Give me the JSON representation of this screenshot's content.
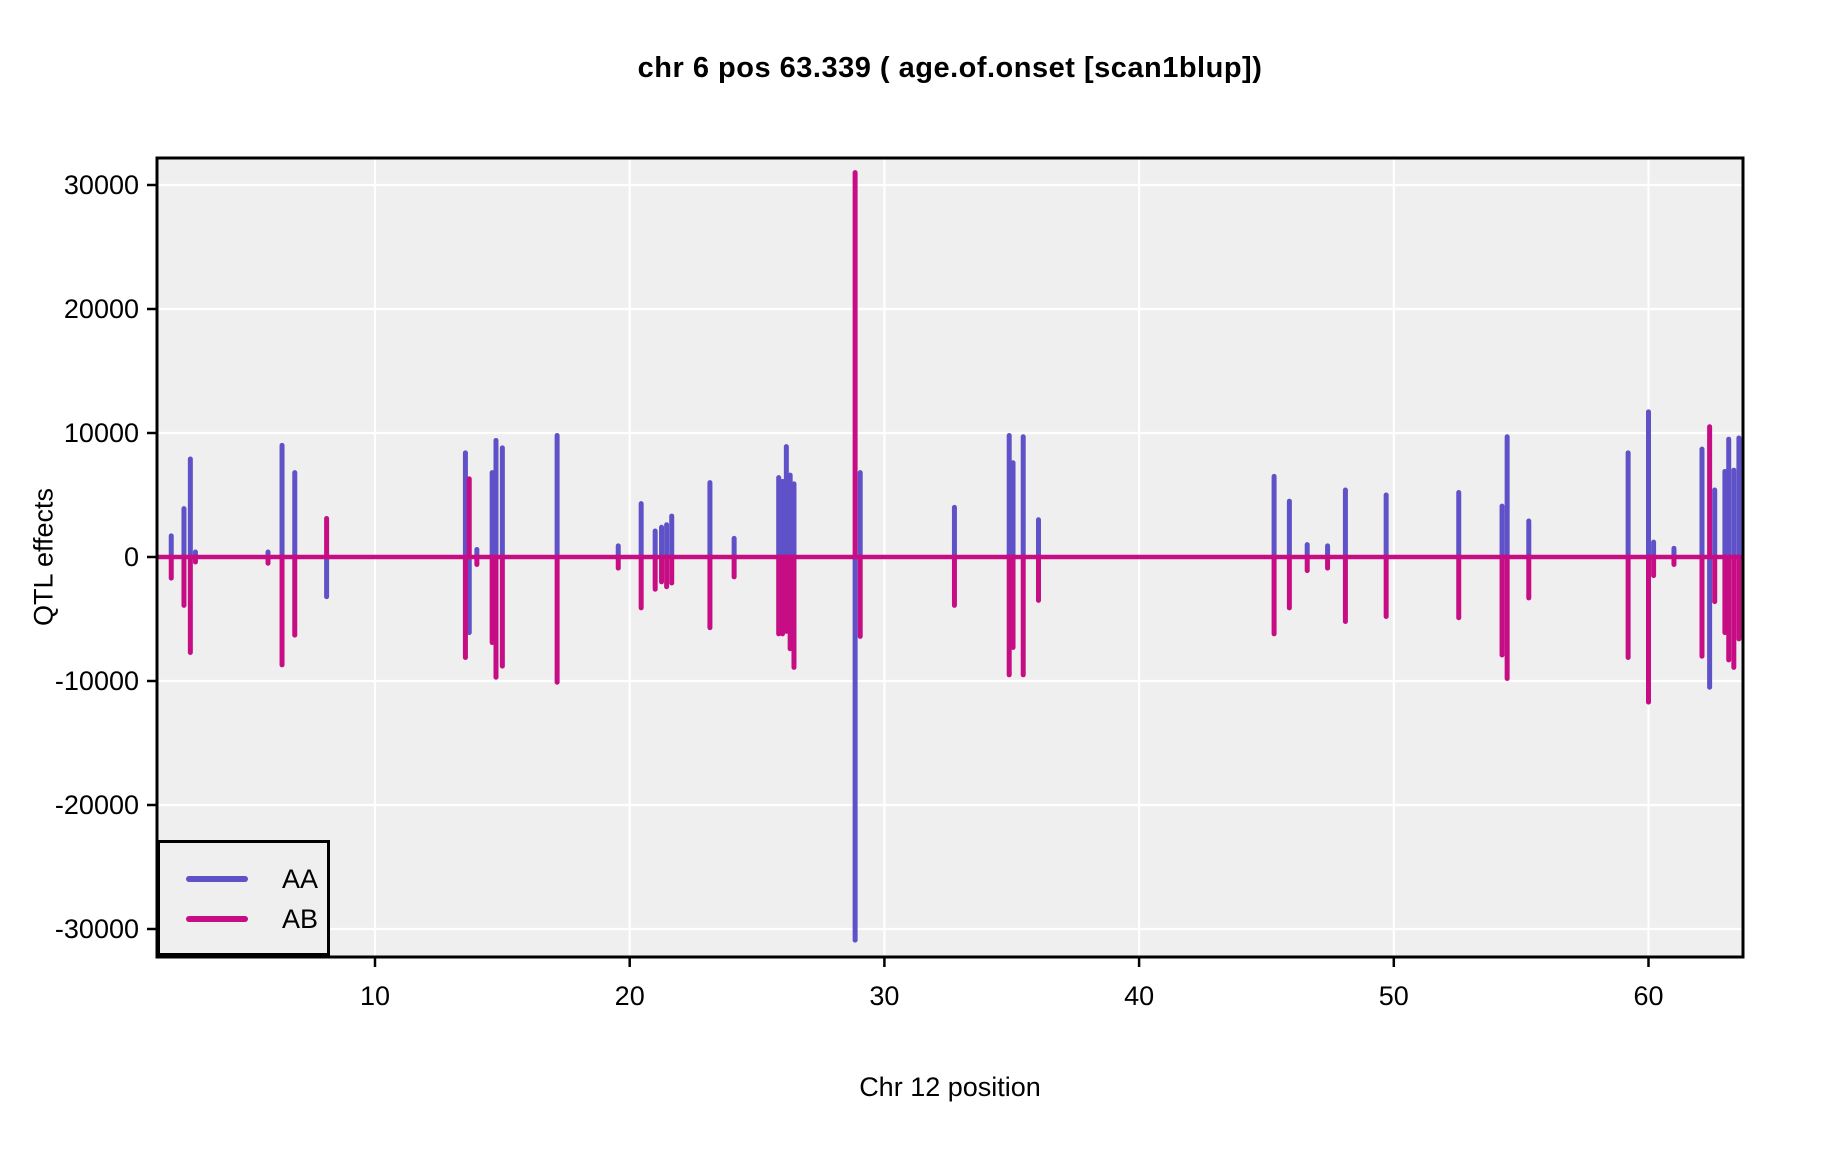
{
  "figure": {
    "title": "chr 6 pos 63.339 ( age.of.onset  [scan1blup])",
    "x_axis_label": "Chr 12 position",
    "y_axis_label": "QTL effects"
  },
  "legend": {
    "position": "bottom-left",
    "entries": [
      {
        "label": "AA",
        "color": "#5f51c8"
      },
      {
        "label": "AB",
        "color": "#c60d84"
      }
    ]
  },
  "panel": {
    "background": "#efefef",
    "gridline_color": "#ffffff",
    "border_color": "#000000",
    "outer_background": "#ffffff",
    "tick_color": "#000000"
  },
  "chart_data": {
    "type": "line",
    "title": "chr 6 pos 63.339 ( age.of.onset  [scan1blup])",
    "xlabel": "Chr 12 position",
    "ylabel": "QTL effects",
    "xlim": [
      1.44,
      63.71
    ],
    "ylim": [
      -32200,
      32200
    ],
    "x_ticks": [
      10,
      20,
      30,
      40,
      50,
      60
    ],
    "y_ticks": [
      -30000,
      -20000,
      -10000,
      0,
      10000,
      20000,
      30000
    ],
    "grid": "major gridlines, white on gray panel",
    "legend_position": "bottom-left",
    "baseline": 0,
    "series_names": [
      "AA",
      "AB"
    ],
    "series_colors": {
      "AA": "#5f51c8",
      "AB": "#c60d84"
    },
    "markers": [
      {
        "pos": 2.0,
        "AA": 1700,
        "AB": -1700
      },
      {
        "pos": 2.5,
        "AA": 3900,
        "AB": -3900
      },
      {
        "pos": 2.75,
        "AA": 7900,
        "AB": -7700
      },
      {
        "pos": 2.95,
        "AA": 400,
        "AB": -400
      },
      {
        "pos": 5.8,
        "AA": 400,
        "AB": -500
      },
      {
        "pos": 6.35,
        "AA": 9000,
        "AB": -8700
      },
      {
        "pos": 6.85,
        "AA": 6800,
        "AB": -6300
      },
      {
        "pos": 8.1,
        "AA": -3200,
        "AB": 3100
      },
      {
        "pos": 13.55,
        "AA": 8400,
        "AB": -8100
      },
      {
        "pos": 13.7,
        "AA": -6100,
        "AB": 6300
      },
      {
        "pos": 14.0,
        "AA": 600,
        "AB": -600
      },
      {
        "pos": 14.6,
        "AA": 6800,
        "AB": -6900
      },
      {
        "pos": 14.75,
        "AA": 9400,
        "AB": -9700
      },
      {
        "pos": 15.0,
        "AA": 8800,
        "AB": -8800
      },
      {
        "pos": 17.15,
        "AA": 9800,
        "AB": -10100
      },
      {
        "pos": 19.55,
        "AA": 900,
        "AB": -900
      },
      {
        "pos": 20.45,
        "AA": 4300,
        "AB": -4100
      },
      {
        "pos": 21.0,
        "AA": 2100,
        "AB": -2600
      },
      {
        "pos": 21.25,
        "AA": 2400,
        "AB": -2000
      },
      {
        "pos": 21.45,
        "AA": 2600,
        "AB": -2400
      },
      {
        "pos": 21.65,
        "AA": 3300,
        "AB": -2100
      },
      {
        "pos": 23.15,
        "AA": 6000,
        "AB": -5700
      },
      {
        "pos": 24.1,
        "AA": 1500,
        "AB": -1600
      },
      {
        "pos": 25.85,
        "AA": 6400,
        "AB": -6200
      },
      {
        "pos": 26.0,
        "AA": 6100,
        "AB": -6200
      },
      {
        "pos": 26.15,
        "AA": 8900,
        "AB": -6000
      },
      {
        "pos": 26.3,
        "AA": 6600,
        "AB": -7400
      },
      {
        "pos": 26.45,
        "AA": 5900,
        "AB": -8900
      },
      {
        "pos": 28.85,
        "AA": -30900,
        "AB": 31000
      },
      {
        "pos": 29.05,
        "AA": 6800,
        "AB": -6400
      },
      {
        "pos": 32.75,
        "AA": 4000,
        "AB": -3900
      },
      {
        "pos": 34.9,
        "AA": 9800,
        "AB": -9500
      },
      {
        "pos": 35.05,
        "AA": 7600,
        "AB": -7300
      },
      {
        "pos": 35.45,
        "AA": 9700,
        "AB": -9500
      },
      {
        "pos": 36.05,
        "AA": 3000,
        "AB": -3500
      },
      {
        "pos": 45.3,
        "AA": 6500,
        "AB": -6200
      },
      {
        "pos": 45.9,
        "AA": 4500,
        "AB": -4100
      },
      {
        "pos": 46.6,
        "AA": 1000,
        "AB": -1100
      },
      {
        "pos": 47.4,
        "AA": 900,
        "AB": -900
      },
      {
        "pos": 48.1,
        "AA": 5400,
        "AB": -5200
      },
      {
        "pos": 49.7,
        "AA": 5000,
        "AB": -4800
      },
      {
        "pos": 52.55,
        "AA": 5200,
        "AB": -4900
      },
      {
        "pos": 54.25,
        "AA": 4100,
        "AB": -7900
      },
      {
        "pos": 54.45,
        "AA": 9700,
        "AB": -9800
      },
      {
        "pos": 55.3,
        "AA": 2900,
        "AB": -3300
      },
      {
        "pos": 59.2,
        "AA": 8400,
        "AB": -8100
      },
      {
        "pos": 60.0,
        "AA": 11700,
        "AB": -11700
      },
      {
        "pos": 60.2,
        "AA": 1200,
        "AB": -1500
      },
      {
        "pos": 61.0,
        "AA": 700,
        "AB": -600
      },
      {
        "pos": 62.1,
        "AA": 8700,
        "AB": -8000
      },
      {
        "pos": 62.4,
        "AA": -10500,
        "AB": 10500
      },
      {
        "pos": 62.6,
        "AA": 5400,
        "AB": -3600
      },
      {
        "pos": 63.0,
        "AA": 6900,
        "AB": -6100
      },
      {
        "pos": 63.15,
        "AA": 9500,
        "AB": -8300
      },
      {
        "pos": 63.35,
        "AA": 7000,
        "AB": -8900
      },
      {
        "pos": 63.55,
        "AA": 9600,
        "AB": -6600
      }
    ]
  }
}
